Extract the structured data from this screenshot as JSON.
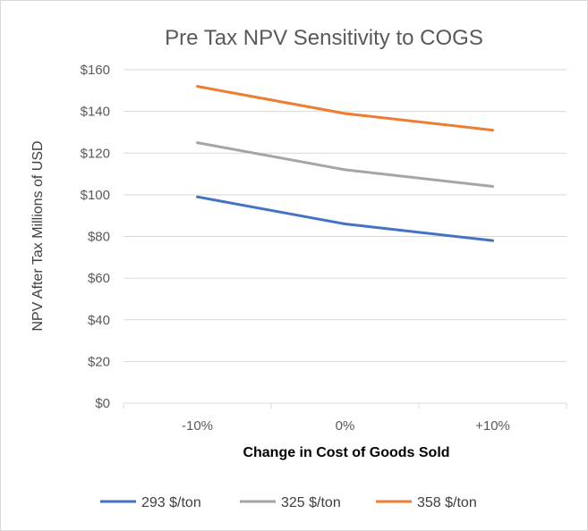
{
  "chart_data": {
    "type": "line",
    "title": "Pre Tax NPV Sensitivity to COGS",
    "xlabel": "Change in Cost of Goods Sold",
    "ylabel": "NPV After Tax Millions of USD",
    "categories": [
      "-10%",
      "0%",
      "+10%"
    ],
    "ylim": [
      0,
      160
    ],
    "yticks": [
      0,
      20,
      40,
      60,
      80,
      100,
      120,
      140,
      160
    ],
    "ytick_labels": [
      "$0",
      "$20",
      "$40",
      "$60",
      "$80",
      "$100",
      "$120",
      "$140",
      "$160"
    ],
    "grid": true,
    "legend_position": "bottom",
    "series": [
      {
        "name": "293 $/ton",
        "color": "#4472c4",
        "values": [
          99,
          86,
          78
        ]
      },
      {
        "name": "325 $/ton",
        "color": "#a5a5a5",
        "values": [
          125,
          112,
          104
        ]
      },
      {
        "name": "358 $/ton",
        "color": "#ed7d31",
        "values": [
          152,
          139,
          131
        ]
      }
    ]
  }
}
